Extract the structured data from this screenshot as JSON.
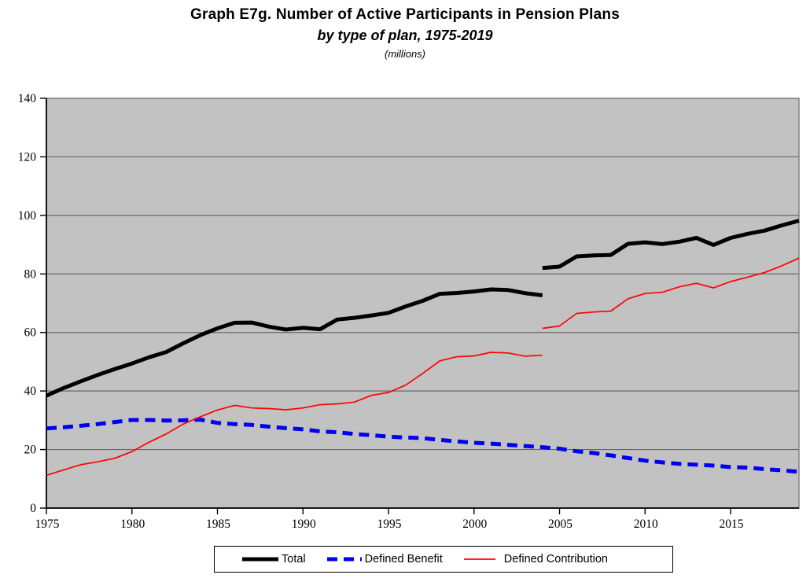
{
  "title": {
    "line1": "Graph E7g. Number of Active Participants in Pension Plans",
    "line2": "by type of plan, 1975-2019",
    "line3": "(millions)"
  },
  "chart_data": {
    "type": "line",
    "title": "Graph E7g. Number of Active Participants in Pension Plans",
    "subtitle": "by type of plan, 1975-2019",
    "units": "millions",
    "x_range": [
      1975,
      2019
    ],
    "y_range": [
      0,
      140
    ],
    "x_ticks": [
      1975,
      1980,
      1985,
      1990,
      1995,
      2000,
      2005,
      2010,
      2015
    ],
    "y_ticks": [
      0,
      20,
      40,
      60,
      80,
      100,
      120,
      140
    ],
    "grid": "horizontal",
    "plot_background": "#c2c2c2",
    "gridline_color": "#666666",
    "border_color": "#777777",
    "axis_color": "#000000",
    "legend_position": "bottom-center",
    "series": [
      {
        "id": "total",
        "name": "Total",
        "color": "#000000",
        "width": 5,
        "dash": null,
        "z": 3,
        "segments": [
          {
            "start_year": 1975,
            "values": [
              38.4,
              41.0,
              43.3,
              45.5,
              47.5,
              49.4,
              51.5,
              53.3,
              56.3,
              59.1,
              61.4,
              63.3,
              63.4,
              62.0,
              61.0,
              61.6,
              61.1,
              64.4,
              65.0,
              65.8,
              66.7,
              68.9,
              70.8,
              73.2,
              73.5,
              74.0,
              74.7,
              74.5,
              73.4,
              72.7
            ]
          },
          {
            "start_year": 2004,
            "values": [
              82.0,
              82.5,
              86.0,
              86.3,
              86.5,
              90.3,
              90.8,
              90.2,
              91.0,
              92.3,
              89.9,
              92.3,
              93.7,
              94.8,
              96.6,
              98.2
            ]
          }
        ]
      },
      {
        "id": "defined-benefit",
        "name": "Defined Benefit",
        "color": "#0000ee",
        "width": 5,
        "dash": "13 8",
        "z": 1,
        "segments": [
          {
            "start_year": 1975,
            "values": [
              27.2,
              27.6,
              28.1,
              28.7,
              29.4,
              30.1,
              30.1,
              29.9,
              30.0,
              30.2,
              29.1,
              28.7,
              28.4,
              27.8,
              27.3,
              26.9,
              26.2,
              25.9,
              25.3,
              24.9,
              24.4,
              24.1,
              23.9,
              23.3,
              22.8,
              22.3,
              22.0,
              21.6,
              21.2,
              20.8,
              20.3,
              19.4,
              18.8,
              18.0,
              17.1,
              16.2,
              15.6,
              15.1,
              14.8,
              14.5,
              14.0,
              13.8,
              13.3,
              12.9,
              12.4
            ]
          }
        ]
      },
      {
        "id": "defined-contribution",
        "name": "Defined Contribution",
        "color": "#ff0000",
        "width": 1.7,
        "dash": null,
        "z": 2,
        "segments": [
          {
            "start_year": 1975,
            "values": [
              11.2,
              13.0,
              14.8,
              15.8,
              17.0,
              19.3,
              22.5,
              25.3,
              28.7,
              31.2,
              33.5,
              35.1,
              34.2,
              34.0,
              33.6,
              34.2,
              35.3,
              35.6,
              36.2,
              38.5,
              39.5,
              42.0,
              46.0,
              50.3,
              51.7,
              52.0,
              53.2,
              53.0,
              51.9,
              52.2
            ]
          },
          {
            "start_year": 2004,
            "values": [
              61.4,
              62.2,
              66.5,
              67.0,
              67.3,
              71.5,
              73.3,
              73.7,
              75.6,
              76.8,
              75.2,
              77.4,
              78.9,
              80.5,
              82.8,
              85.4
            ]
          }
        ]
      }
    ]
  }
}
